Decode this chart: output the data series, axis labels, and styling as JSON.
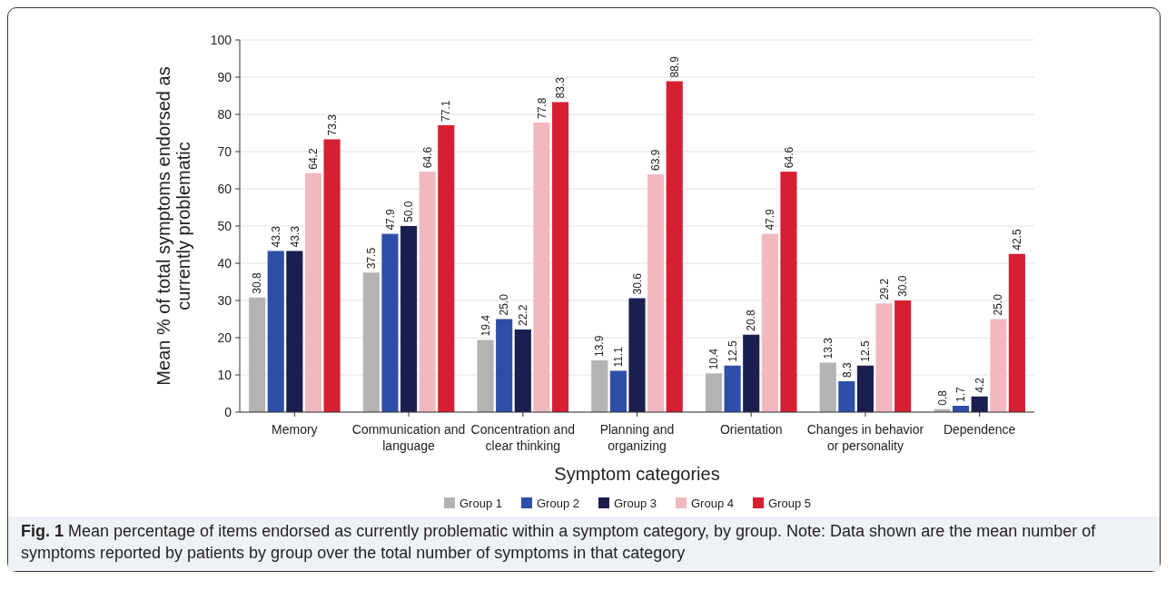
{
  "chart_data": {
    "type": "bar",
    "xlabel": "Symptom categories",
    "ylabel": "Mean % of total symptoms endorsed as currently problematic",
    "categories": [
      "Memory",
      "Communication and language",
      "Concentration and clear thinking",
      "Planning and organizing",
      "Orientation",
      "Changes in behavior or personality",
      "Dependence"
    ],
    "series": [
      {
        "name": "Group 1",
        "color": "#b3b3b3",
        "values": [
          30.8,
          37.5,
          19.4,
          13.9,
          10.4,
          13.3,
          0.8
        ],
        "value_labels": [
          "30.8",
          "37.5",
          "19.4",
          "13.9",
          "10.4",
          "13.3",
          "0.8"
        ]
      },
      {
        "name": "Group 2",
        "color": "#2e4fa8",
        "values": [
          43.3,
          47.9,
          25,
          11.1,
          12.5,
          8.3,
          1.7
        ],
        "value_labels": [
          "43.3",
          "47.9",
          "25.0",
          "11.1",
          "12.5",
          "8.3",
          "1.7"
        ]
      },
      {
        "name": "Group 3",
        "color": "#1b1f4f",
        "values": [
          43.3,
          50,
          22.2,
          30.6,
          20.8,
          12.5,
          4.2
        ],
        "value_labels": [
          "43.3",
          "50.0",
          "22.2",
          "30.6",
          "20.8",
          "12.5",
          "4.2"
        ]
      },
      {
        "name": "Group 4",
        "color": "#f2b8c0",
        "values": [
          64.2,
          64.6,
          77.8,
          63.9,
          47.9,
          29.2,
          25
        ],
        "value_labels": [
          "64.2",
          "64.6",
          "77.8",
          "63.9",
          "47.9",
          "29.2",
          "25.0"
        ]
      },
      {
        "name": "Group 5",
        "color": "#d61f30",
        "values": [
          73.3,
          77.1,
          83.3,
          88.9,
          64.6,
          30,
          42.5
        ],
        "value_labels": [
          "73.3",
          "77.1",
          "83.3",
          "88.9",
          "64.6",
          "30.0",
          "42.5"
        ]
      }
    ],
    "ylim": [
      0,
      100
    ],
    "yticks": [
      0,
      10,
      20,
      30,
      40,
      50,
      60,
      70,
      80,
      90,
      100
    ],
    "grid": "y",
    "legend": "bottom",
    "annotations": [
      "Fig. 1",
      "Mean percentage of items endorsed as currently problematic within a symptom category, by group. Note: Data shown are the mean number of symptoms reported by patients by group over the total number of symptoms in that category"
    ]
  }
}
